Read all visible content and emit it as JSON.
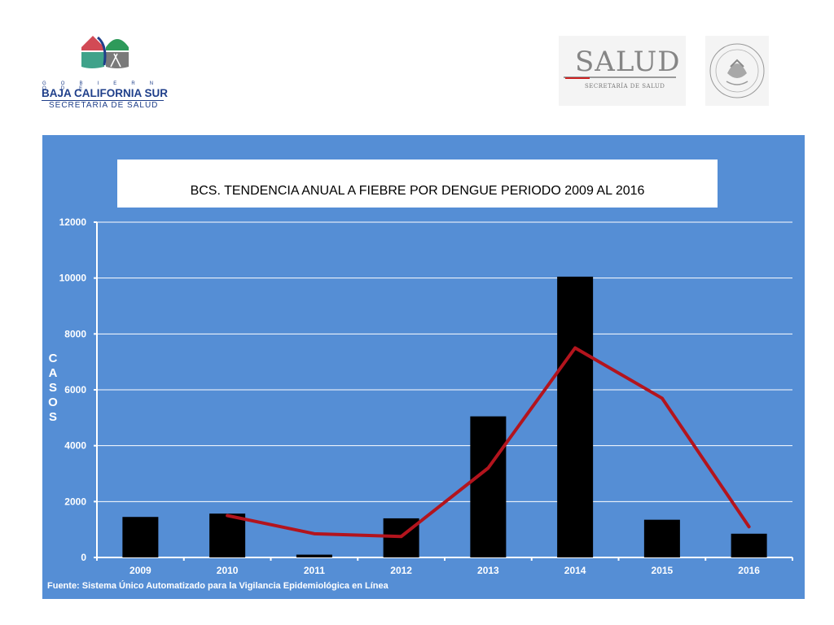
{
  "header": {
    "left_logo": {
      "gobierno_text": "G O B I E R N O D E",
      "state_name": "BAJA CALIFORNIA SUR",
      "department": "SECRETARÍA DE SALUD"
    },
    "right_logo": {
      "brand": "SALUD",
      "subtitle": "SECRETARÍA DE SALUD",
      "seal": "ESTADOS UNIDOS MEXICANOS"
    }
  },
  "colors": {
    "panel_background": "#558ed5",
    "bar": "#000000",
    "trend_line": "#b3141d",
    "gridline": "#ffffff"
  },
  "chart_data": {
    "type": "bar",
    "title": "BCS. TENDENCIA ANUAL A FIEBRE POR DENGUE  PERIODO 2009 AL 2016",
    "ylabel": "CASOS",
    "xlabel": "",
    "categories": [
      "2009",
      "2010",
      "2011",
      "2012",
      "2013",
      "2014",
      "2015",
      "2016"
    ],
    "series": [
      {
        "type": "bar",
        "values": [
          1450,
          1570,
          100,
          1400,
          5050,
          10050,
          1350,
          850
        ]
      },
      {
        "type": "line",
        "x": [
          "2010",
          "2011",
          "2012",
          "2013",
          "2014",
          "2015",
          "2016"
        ],
        "values": [
          1500,
          850,
          750,
          3200,
          7500,
          5700,
          1100
        ]
      }
    ],
    "ylim": [
      0,
      12000
    ],
    "yticks": [
      0,
      2000,
      4000,
      6000,
      8000,
      10000,
      12000
    ],
    "grid": true,
    "legend": "none"
  },
  "source_note": "Fuente: Sistema Único Automatizado para la Vigilancia Epidemiológica en Línea"
}
